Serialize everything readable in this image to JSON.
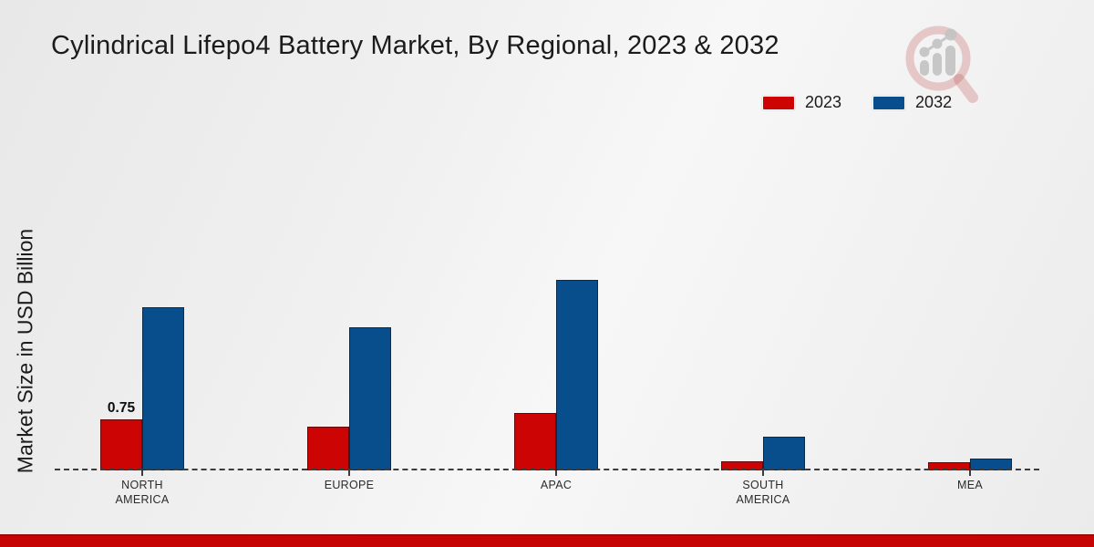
{
  "title": "Cylindrical Lifepo4 Battery Market, By Regional, 2023 & 2032",
  "y_axis_label": "Market Size in USD Billion",
  "legend": {
    "position": "top-right",
    "items": [
      {
        "label": "2023",
        "color": "#cc0404"
      },
      {
        "label": "2032",
        "color": "#084d8c"
      }
    ]
  },
  "colors": {
    "bar_2023": "#cc0404",
    "bar_2032": "#084d8c",
    "footer_strip": "#c70404",
    "baseline": "#3c3c3c",
    "background": "#efefef"
  },
  "watermark_icon": "magnifier-barchart-logo",
  "chart_data": {
    "type": "bar",
    "categories": [
      "NORTH AMERICA",
      "EUROPE",
      "APAC",
      "SOUTH AMERICA",
      "MEA"
    ],
    "series": [
      {
        "name": "2023",
        "color": "#cc0404",
        "values": [
          0.75,
          0.64,
          0.85,
          0.13,
          0.12
        ]
      },
      {
        "name": "2032",
        "color": "#084d8c",
        "values": [
          2.4,
          2.1,
          2.8,
          0.49,
          0.18
        ]
      }
    ],
    "bar_labels": [
      {
        "series_index": 0,
        "category_index": 0,
        "text": "0.75"
      }
    ],
    "title": "Cylindrical Lifepo4 Battery Market, By Regional, 2023 & 2032",
    "xlabel": "",
    "ylabel": "Market Size in USD Billion",
    "ylim": [
      0,
      3
    ],
    "grid": false,
    "axis_ticks_visible": false,
    "baseline_style": "dashed",
    "legend_position": "top-right"
  }
}
